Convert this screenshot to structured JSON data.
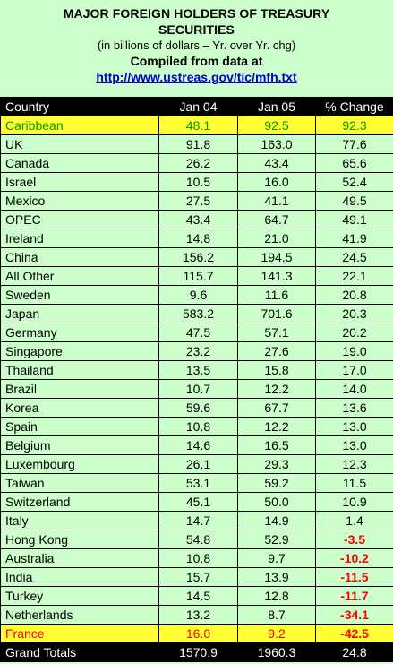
{
  "header": {
    "title_line1": "MAJOR FOREIGN HOLDERS OF TREASURY",
    "title_line2": "SECURITIES",
    "subtitle": "(in billions of dollars – Yr. over Yr. chg)",
    "compiled": "Compiled from data at",
    "url": "http://www.ustreas.gov/tic/mfh.txt"
  },
  "chart_data": {
    "type": "table",
    "columns": [
      "Country",
      "Jan 04",
      "Jan 05",
      "% Change"
    ],
    "rows": [
      [
        "Caribbean",
        "48.1",
        "92.5",
        "92.3"
      ],
      [
        "UK",
        "91.8",
        "163.0",
        "77.6"
      ],
      [
        "Canada",
        "26.2",
        "43.4",
        "65.6"
      ],
      [
        "Israel",
        "10.5",
        "16.0",
        "52.4"
      ],
      [
        "Mexico",
        "27.5",
        "41.1",
        "49.5"
      ],
      [
        "OPEC",
        "43.4",
        "64.7",
        "49.1"
      ],
      [
        "Ireland",
        "14.8",
        "21.0",
        "41.9"
      ],
      [
        "China",
        "156.2",
        "194.5",
        "24.5"
      ],
      [
        "All Other",
        "115.7",
        "141.3",
        "22.1"
      ],
      [
        "Sweden",
        "9.6",
        "11.6",
        "20.8"
      ],
      [
        "Japan",
        "583.2",
        "701.6",
        "20.3"
      ],
      [
        "Germany",
        "47.5",
        "57.1",
        "20.2"
      ],
      [
        "Singapore",
        "23.2",
        "27.6",
        "19.0"
      ],
      [
        "Thailand",
        "13.5",
        "15.8",
        "17.0"
      ],
      [
        "Brazil",
        "10.7",
        "12.2",
        "14.0"
      ],
      [
        "Korea",
        "59.6",
        "67.7",
        "13.6"
      ],
      [
        "Spain",
        "10.8",
        "12.2",
        "13.0"
      ],
      [
        "Belgium",
        "14.6",
        "16.5",
        "13.0"
      ],
      [
        "Luxembourg",
        "26.1",
        "29.3",
        "12.3"
      ],
      [
        "Taiwan",
        "53.1",
        "59.2",
        "11.5"
      ],
      [
        "Switzerland",
        "45.1",
        "50.0",
        "10.9"
      ],
      [
        "Italy",
        "14.7",
        "14.9",
        "1.4"
      ],
      [
        "Hong Kong",
        "54.8",
        "52.9",
        "-3.5"
      ],
      [
        "Australia",
        "10.8",
        "9.7",
        "-10.2"
      ],
      [
        "India",
        "15.7",
        "13.9",
        "-11.5"
      ],
      [
        "Turkey",
        "14.5",
        "12.8",
        "-11.7"
      ],
      [
        "Netherlands",
        "13.2",
        "8.7",
        "-34.1"
      ],
      [
        "France",
        "16.0",
        "9.2",
        "-42.5"
      ]
    ],
    "totals": [
      "Grand Totals",
      "1570.9",
      "1960.3",
      "24.8"
    ]
  },
  "colors": {
    "background": "#ccffcc",
    "highlight": "#ffff33",
    "top_text": "#009900",
    "negative_text": "#ff0000",
    "header_bg": "#000000",
    "link": "#0000cc"
  }
}
